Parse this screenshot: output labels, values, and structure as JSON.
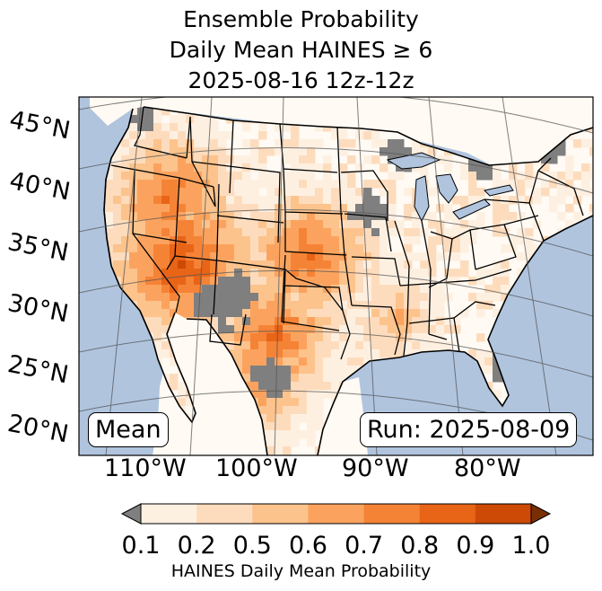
{
  "title": {
    "line1": "Ensemble Probability",
    "line2": "Daily Mean HAINES ≥ 6",
    "line3": "2025-08-16 12z-12z"
  },
  "lat_labels": [
    "45°N",
    "40°N",
    "35°N",
    "30°N",
    "25°N",
    "20°N"
  ],
  "lon_labels": [
    "110°W",
    "100°W",
    "90°W",
    "80°W"
  ],
  "boxes": {
    "left": "Mean",
    "right": "Run: 2025-08-09"
  },
  "colorbar": {
    "ticks": [
      "0.1",
      "0.2",
      "0.5",
      "0.6",
      "0.7",
      "0.8",
      "0.9",
      "1.0"
    ],
    "label": "HAINES Daily Mean Probability",
    "colors": [
      "#fef0e1",
      "#fddcbd",
      "#fcc38c",
      "#fba35e",
      "#f58336",
      "#e86417",
      "#cc4a05"
    ],
    "under_color": "#7f7f7f",
    "over_color": "#7a2e04"
  },
  "map_colors": {
    "ocean": "#b0c4de",
    "land": "#fffaf3",
    "missing": "#7f7f7f",
    "lakes": "#b0c4de"
  }
}
